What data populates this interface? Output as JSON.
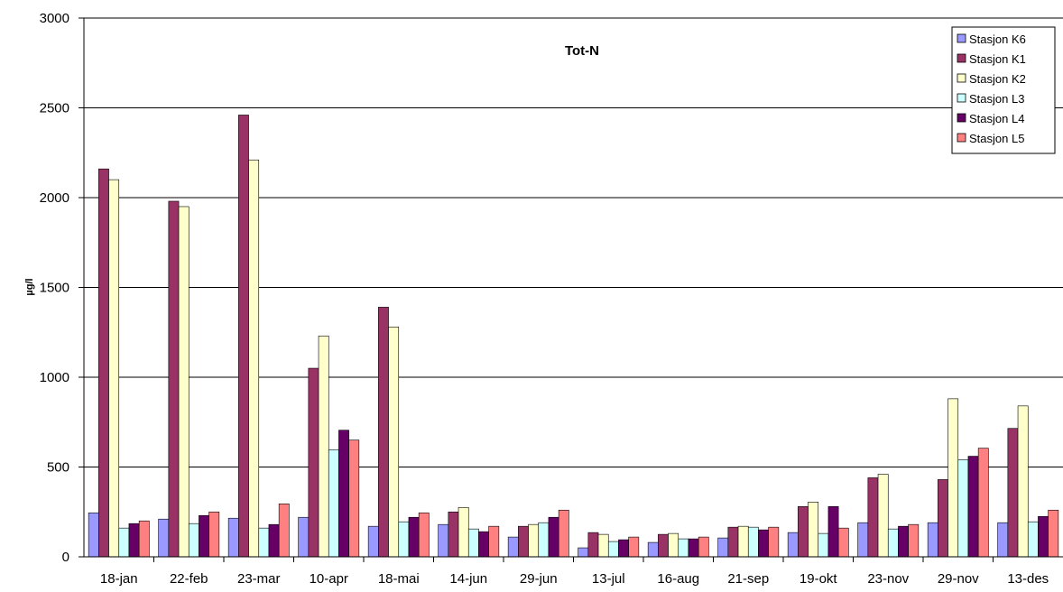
{
  "chart_data": {
    "type": "bar",
    "title": "Tot-N",
    "xlabel": "",
    "ylabel": "µg/l",
    "ylim": [
      0,
      3000
    ],
    "yticks": [
      0,
      500,
      1000,
      1500,
      2000,
      2500,
      3000
    ],
    "grid": true,
    "legend_position": "top-right",
    "categories": [
      "18-jan",
      "22-feb",
      "23-mar",
      "10-apr",
      "18-mai",
      "14-jun",
      "29-jun",
      "13-jul",
      "16-aug",
      "21-sep",
      "19-okt",
      "23-nov",
      "29-nov",
      "13-des"
    ],
    "series": [
      {
        "name": "Stasjon K6",
        "color": "#9999FF",
        "values": [
          245,
          210,
          215,
          220,
          170,
          180,
          110,
          50,
          80,
          105,
          135,
          190,
          190,
          190
        ]
      },
      {
        "name": "Stasjon K1",
        "color": "#993366",
        "values": [
          2160,
          1980,
          2460,
          1050,
          1390,
          250,
          170,
          135,
          125,
          165,
          280,
          440,
          430,
          715
        ]
      },
      {
        "name": "Stasjon K2",
        "color": "#FFFFCC",
        "values": [
          2100,
          1950,
          2210,
          1230,
          1280,
          275,
          180,
          125,
          130,
          170,
          305,
          460,
          880,
          840
        ]
      },
      {
        "name": "Stasjon L3",
        "color": "#CCFFFF",
        "values": [
          160,
          185,
          160,
          595,
          195,
          155,
          190,
          85,
          100,
          165,
          130,
          155,
          540,
          195
        ]
      },
      {
        "name": "Stasjon L4",
        "color": "#660066",
        "values": [
          185,
          230,
          180,
          705,
          220,
          140,
          220,
          95,
          100,
          150,
          280,
          170,
          560,
          225
        ]
      },
      {
        "name": "Stasjon L5",
        "color": "#FF8080",
        "values": [
          200,
          250,
          295,
          650,
          245,
          170,
          260,
          110,
          110,
          165,
          160,
          180,
          605,
          260
        ]
      }
    ]
  }
}
